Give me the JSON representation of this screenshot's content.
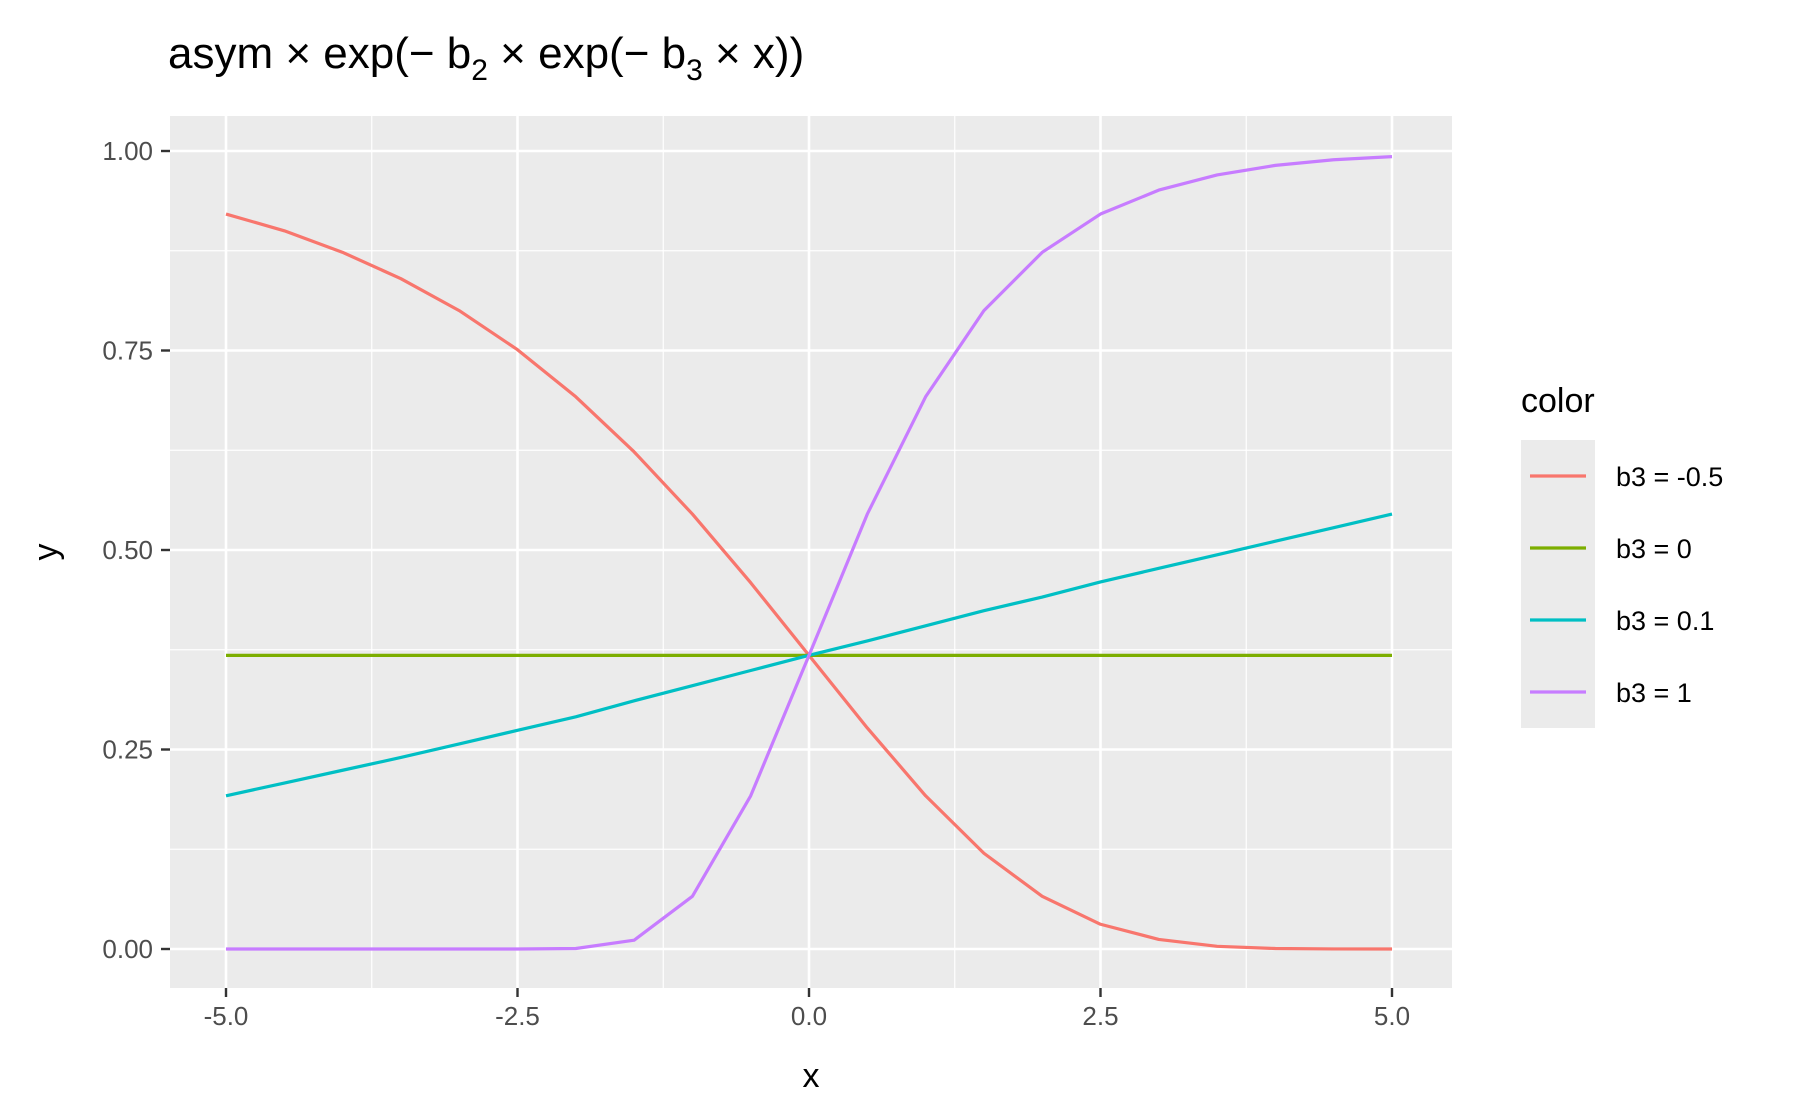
{
  "chart_data": {
    "type": "line",
    "title": {
      "base": "asym × exp(− b",
      "sub1": "2",
      "mid": " × exp(− b",
      "sub2": "3",
      "end": " × x))"
    },
    "xlabel": "x",
    "ylabel": "y",
    "xlim": [
      -5.0,
      5.0
    ],
    "ylim": [
      0.0,
      1.0
    ],
    "x_ticks": [
      -5.0,
      -2.5,
      0.0,
      2.5,
      5.0
    ],
    "x_tick_labels": [
      "-5.0",
      "-2.5",
      "0.0",
      "2.5",
      "5.0"
    ],
    "y_ticks": [
      0.0,
      0.25,
      0.5,
      0.75,
      1.0
    ],
    "y_tick_labels": [
      "0.00",
      "0.25",
      "0.50",
      "0.75",
      "1.00"
    ],
    "grid": true,
    "legend": {
      "title": "color",
      "position": "right"
    },
    "x": [
      -5.0,
      -4.5,
      -4.0,
      -3.5,
      -3.0,
      -2.5,
      -2.0,
      -1.5,
      -1.0,
      -0.5,
      0.0,
      0.5,
      1.0,
      1.5,
      2.0,
      2.5,
      3.0,
      3.5,
      4.0,
      4.5,
      5.0
    ],
    "series": [
      {
        "name": "b3 = -0.5",
        "color": "#F8766D",
        "values": [
          0.921,
          0.9,
          0.873,
          0.84,
          0.8,
          0.751,
          0.692,
          0.623,
          0.545,
          0.459,
          0.368,
          0.277,
          0.192,
          0.12,
          0.066,
          0.031,
          0.012,
          0.0034,
          0.0006,
          0.0001,
          0.0
        ]
      },
      {
        "name": "b3 = 0",
        "color": "#7CAE00",
        "values": [
          0.368,
          0.368,
          0.368,
          0.368,
          0.368,
          0.368,
          0.368,
          0.368,
          0.368,
          0.368,
          0.368,
          0.368,
          0.368,
          0.368,
          0.368,
          0.368,
          0.368,
          0.368,
          0.368,
          0.368,
          0.368
        ]
      },
      {
        "name": "b3 = 0.1",
        "color": "#00BFC4",
        "values": [
          0.192,
          0.208,
          0.224,
          0.24,
          0.257,
          0.274,
          0.291,
          0.311,
          0.33,
          0.349,
          0.368,
          0.386,
          0.405,
          0.424,
          0.441,
          0.46,
          0.477,
          0.494,
          0.511,
          0.528,
          0.545
        ]
      },
      {
        "name": "b3 = 1",
        "color": "#C77CFF",
        "values": [
          0.0,
          0.0,
          0.0,
          0.0,
          0.0,
          0.0,
          0.0006,
          0.011,
          0.066,
          0.192,
          0.368,
          0.545,
          0.692,
          0.8,
          0.873,
          0.921,
          0.951,
          0.97,
          0.982,
          0.989,
          0.993
        ]
      }
    ]
  }
}
